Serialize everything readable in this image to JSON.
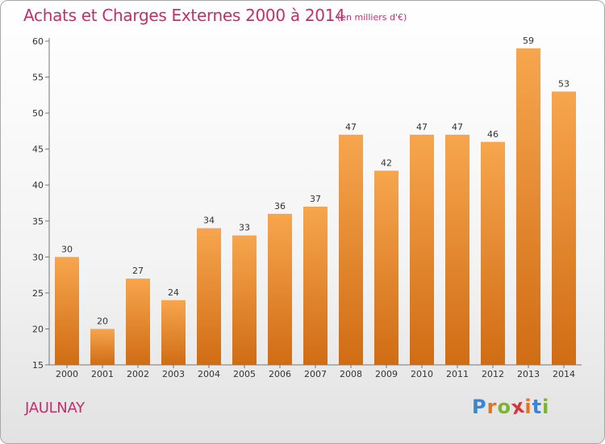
{
  "header": {
    "title": "Achats et Charges Externes 2000 à 2014",
    "subtitle": "(en milliers d'€)"
  },
  "footer": {
    "place": "JAULNAY",
    "logo_letters": [
      "P",
      "r",
      "o",
      "x",
      "i",
      "t",
      "i"
    ]
  },
  "colors": {
    "title": "#c0306a",
    "bar_light": "#f7a64e",
    "bar_dark": "#d06c14",
    "logo": [
      "#3a86d6",
      "#e8731f",
      "#7bb52d",
      "#d23a3a",
      "#e8731f",
      "#3a86d6",
      "#7bb52d"
    ]
  },
  "chart_data": {
    "type": "bar",
    "title": "Achats et Charges Externes 2000 à 2014",
    "subtitle": "(en milliers d'€)",
    "categories": [
      "2000",
      "2001",
      "2002",
      "2003",
      "2004",
      "2005",
      "2006",
      "2007",
      "2008",
      "2009",
      "2010",
      "2011",
      "2012",
      "2013",
      "2014"
    ],
    "values": [
      30,
      20,
      27,
      24,
      34,
      33,
      36,
      37,
      47,
      42,
      47,
      47,
      46,
      59,
      53
    ],
    "ylim": [
      15,
      60
    ],
    "yticks": [
      15,
      20,
      25,
      30,
      35,
      40,
      45,
      50,
      55,
      60
    ],
    "grid": false,
    "data_labels": true
  }
}
